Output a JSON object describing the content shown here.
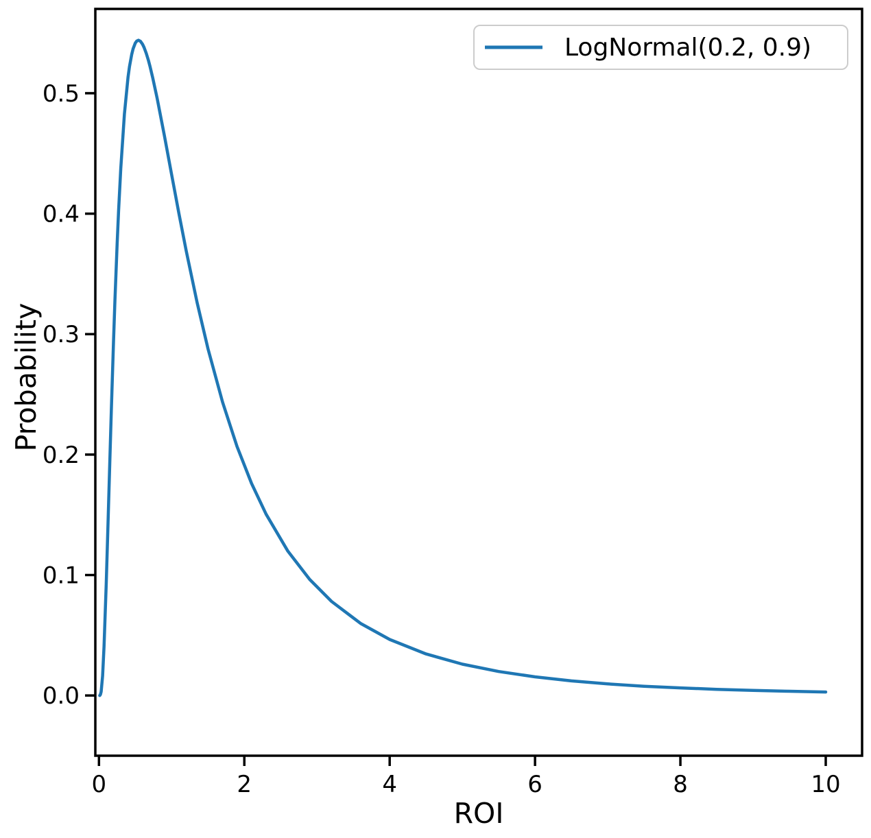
{
  "chart_data": {
    "type": "line",
    "title": "",
    "xlabel": "ROI",
    "ylabel": "Probability",
    "xlim": [
      -0.05,
      10.5
    ],
    "ylim": [
      -0.05,
      0.57
    ],
    "xticks": [
      0,
      2,
      4,
      6,
      8,
      10
    ],
    "xtick_labels": [
      "0",
      "2",
      "4",
      "6",
      "8",
      "10"
    ],
    "yticks": [
      0.0,
      0.1,
      0.2,
      0.3,
      0.4,
      0.5
    ],
    "ytick_labels": [
      "0.0",
      "0.1",
      "0.2",
      "0.3",
      "0.4",
      "0.5"
    ],
    "grid": false,
    "legend": {
      "position": "upper right"
    },
    "series": [
      {
        "name": "LogNormal(0.2, 0.9)",
        "color": "#1f77b4",
        "x": [
          0.01,
          0.02,
          0.03,
          0.05,
          0.07,
          0.1,
          0.12,
          0.15,
          0.17,
          0.2,
          0.22,
          0.25,
          0.27,
          0.3,
          0.35,
          0.4,
          0.42,
          0.45,
          0.47,
          0.5,
          0.52,
          0.543,
          0.57,
          0.6,
          0.62,
          0.65,
          0.68,
          0.7,
          0.74,
          0.8,
          0.9,
          1.0,
          1.1,
          1.2,
          1.35,
          1.5,
          1.7,
          1.9,
          2.1,
          2.3,
          2.6,
          2.9,
          3.2,
          3.6,
          4.0,
          4.5,
          5.0,
          5.5,
          6.0,
          6.5,
          7.0,
          7.5,
          8.0,
          8.5,
          9.0,
          9.5,
          10.0
        ],
        "y": [
          0.0,
          0.0007,
          0.0031,
          0.0162,
          0.0408,
          0.0928,
          0.1331,
          0.1956,
          0.2362,
          0.2936,
          0.3284,
          0.375,
          0.4022,
          0.4375,
          0.4827,
          0.5134,
          0.5221,
          0.5321,
          0.5369,
          0.5417,
          0.5433,
          0.544,
          0.5432,
          0.5406,
          0.5381,
          0.5332,
          0.5273,
          0.5228,
          0.5128,
          0.4959,
          0.4648,
          0.4323,
          0.4001,
          0.3692,
          0.3262,
          0.2878,
          0.2436,
          0.2067,
          0.176,
          0.1505,
          0.1198,
          0.0963,
          0.0781,
          0.0598,
          0.0465,
          0.0345,
          0.026,
          0.0199,
          0.0155,
          0.0121,
          0.0096,
          0.0077,
          0.0063,
          0.0051,
          0.0042,
          0.0035,
          0.0029
        ]
      }
    ]
  },
  "colors": {
    "line": "#1f77b4",
    "axis": "#000000",
    "background": "#ffffff",
    "legend_border": "#cccccc",
    "legend_background": "#ffffff"
  }
}
